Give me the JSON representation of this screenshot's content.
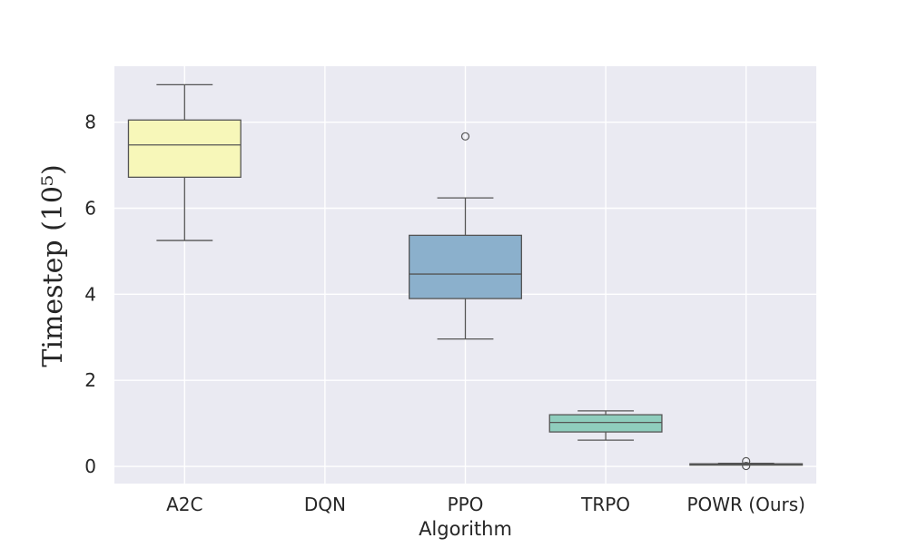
{
  "chart_data": {
    "type": "boxplot",
    "title": "",
    "xlabel": "Algorithm",
    "ylabel": "Timestep (10⁵)",
    "ylim": [
      -0.4,
      9.3
    ],
    "yticks": [
      0,
      2,
      4,
      6,
      8
    ],
    "grid": true,
    "categories": [
      "A2C",
      "DQN",
      "PPO",
      "TRPO",
      "POWR (Ours)"
    ],
    "series": [
      {
        "name": "A2C",
        "color": "#f7f7b9",
        "whisker_low": 5.25,
        "q1": 6.72,
        "median": 7.47,
        "q3": 8.05,
        "whisker_high": 8.87,
        "outliers": []
      },
      {
        "name": "DQN",
        "color": "#d3d3d3",
        "whisker_low": null,
        "q1": null,
        "median": null,
        "q3": null,
        "whisker_high": null,
        "outliers": []
      },
      {
        "name": "PPO",
        "color": "#8bb0cc",
        "whisker_low": 2.96,
        "q1": 3.9,
        "median": 4.47,
        "q3": 5.37,
        "whisker_high": 6.24,
        "outliers": [
          7.67
        ]
      },
      {
        "name": "TRPO",
        "color": "#8fcdbd",
        "whisker_low": 0.61,
        "q1": 0.8,
        "median": 1.02,
        "q3": 1.2,
        "whisker_high": 1.29,
        "outliers": []
      },
      {
        "name": "POWR (Ours)",
        "color": "#8fcdbd",
        "whisker_low": 0.04,
        "q1": 0.05,
        "median": 0.055,
        "q3": 0.06,
        "whisker_high": 0.07,
        "outliers": [
          0.12,
          0.01
        ]
      }
    ]
  },
  "colors": {
    "plot_background": "#eaeaf2",
    "grid": "#ffffff",
    "line": "#555555"
  }
}
